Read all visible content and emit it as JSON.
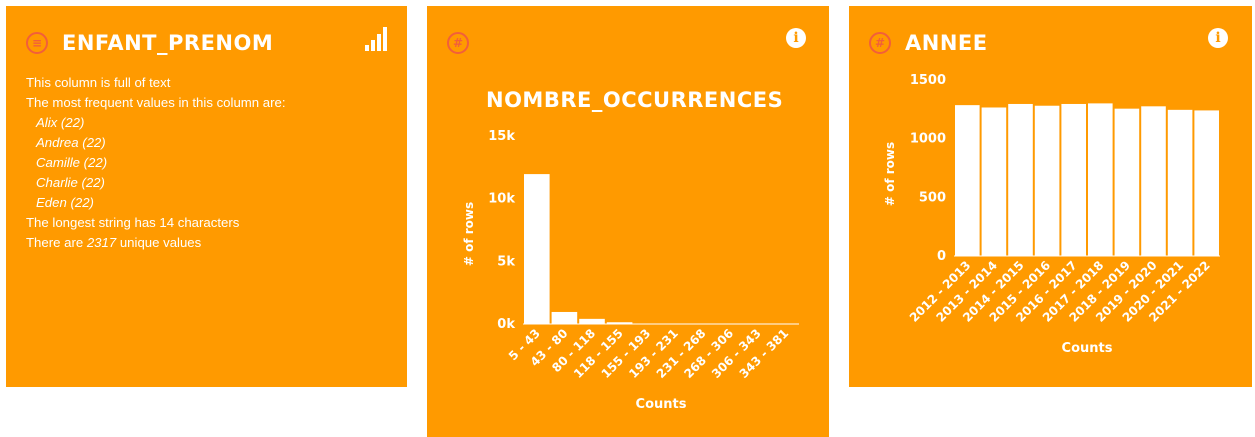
{
  "cards": [
    {
      "title": "ENFANT_PRENOM",
      "type_icon": "stack-icon",
      "type_glyph": "≡",
      "action_icon": "signal-bars-icon",
      "summary": {
        "line1": "This column is full of text",
        "line2": "The most frequent values in this column are:",
        "values": [
          "Alix (22)",
          "Andrea (22)",
          "Camille (22)",
          "Charlie (22)",
          "Eden (22)"
        ],
        "longest": "The longest string has 14 characters",
        "unique_prefix": "There are ",
        "unique_count": "2317",
        "unique_suffix": " unique values"
      }
    },
    {
      "title": "",
      "big_title": "NOMBRE_OCCURRENCES",
      "type_icon": "hash-icon",
      "type_glyph": "#",
      "action_icon": "info-icon",
      "info_glyph": "i"
    },
    {
      "title": "ANNEE",
      "type_icon": "hash-icon",
      "type_glyph": "#",
      "action_icon": "info-icon",
      "info_glyph": "i"
    }
  ],
  "chart_data": [
    {
      "type": "bar",
      "title": "NOMBRE_OCCURRENCES",
      "xlabel": "Counts",
      "ylabel": "# of rows",
      "categories": [
        "5 - 43",
        "43 - 80",
        "80 - 118",
        "118 - 155",
        "155 - 193",
        "193 - 231",
        "231 - 268",
        "268 - 306",
        "306 - 343",
        "343 - 381"
      ],
      "values": [
        12000,
        1000,
        450,
        180,
        60,
        30,
        20,
        15,
        10,
        8
      ],
      "yticks": [
        0,
        5000,
        10000,
        15000
      ],
      "ytick_labels": [
        "0k",
        "5k",
        "10k",
        "15k"
      ],
      "ylim": [
        0,
        15000
      ],
      "grid": false
    },
    {
      "type": "bar",
      "xlabel": "Counts",
      "ylabel": "# of rows",
      "categories": [
        "2012 - 2013",
        "2013 - 2014",
        "2014 - 2015",
        "2015 - 2016",
        "2016 - 2017",
        "2017 - 2018",
        "2018 - 2019",
        "2019 - 2020",
        "2020 - 2021",
        "2021 - 2022"
      ],
      "values": [
        1290,
        1270,
        1300,
        1285,
        1300,
        1305,
        1260,
        1280,
        1250,
        1245
      ],
      "yticks": [
        0,
        500,
        1000,
        1500
      ],
      "ytick_labels": [
        "0",
        "500",
        "1000",
        "1500"
      ],
      "ylim": [
        0,
        1500
      ],
      "grid": false
    }
  ],
  "colors": {
    "card_bg": "#ff9a00",
    "type_icon": "#f25f3a",
    "bar_fill": "#ffffff",
    "text": "#ffffff"
  }
}
